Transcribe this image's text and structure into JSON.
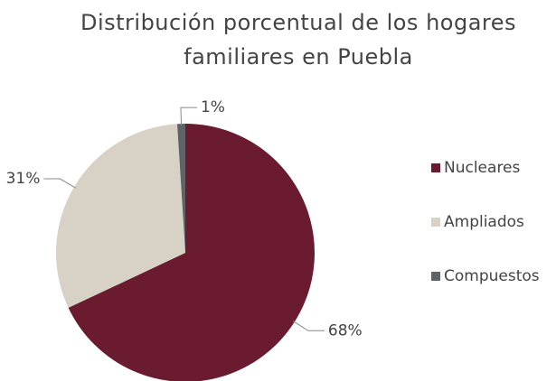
{
  "chart_data": {
    "type": "pie",
    "title": "Distribución porcentual de los hogares familiares en Puebla",
    "categories": [
      "Nucleares",
      "Ampliados",
      "Compuestos"
    ],
    "values": [
      68,
      31,
      1
    ],
    "value_labels": [
      "68%",
      "31%",
      "1%"
    ],
    "colors": [
      "#6b1b30",
      "#d8d1c6",
      "#5e6367"
    ],
    "legend": "right"
  }
}
